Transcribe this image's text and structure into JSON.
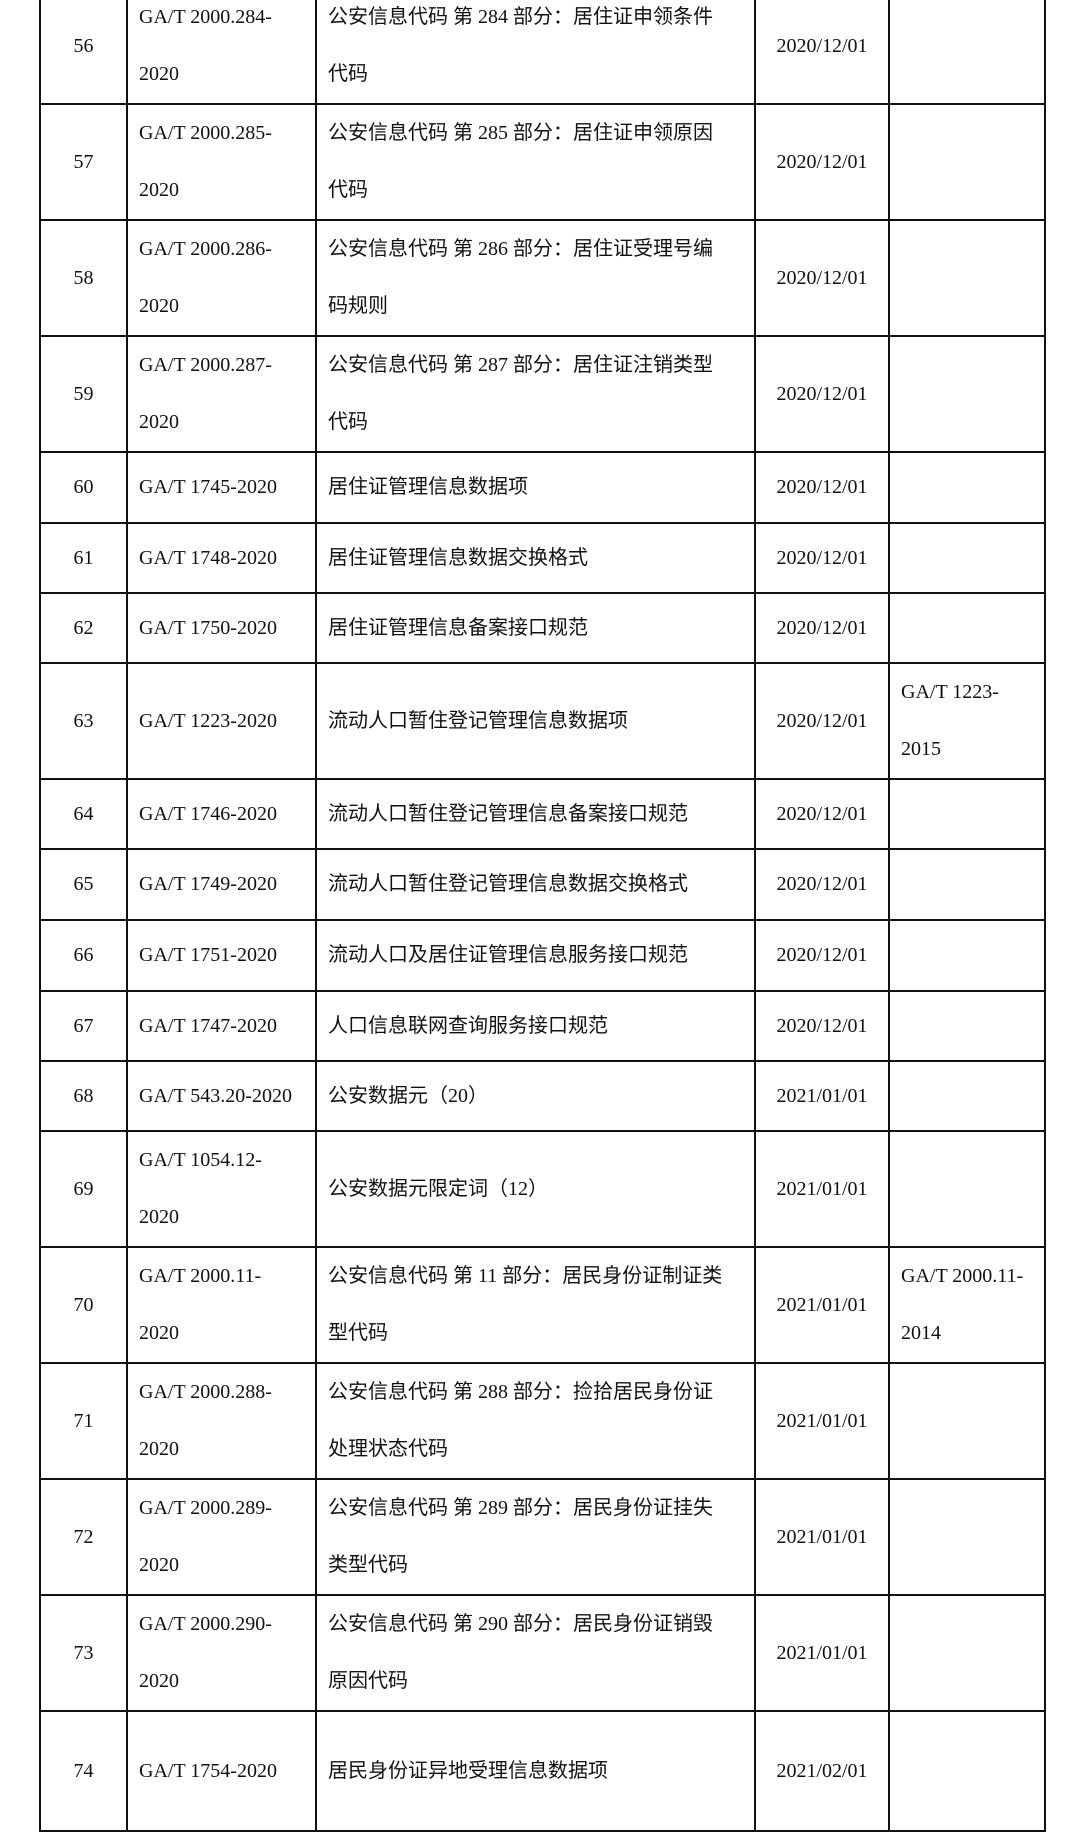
{
  "rows": [
    {
      "no": "56",
      "standard": [
        "GA/T 2000.284-",
        "2020"
      ],
      "title": [
        "公安信息代码 第 284 部分：居住证申领条件",
        "代码"
      ],
      "date": "2020/12/01",
      "replaced": []
    },
    {
      "no": "57",
      "standard": [
        "GA/T 2000.285-",
        "2020"
      ],
      "title": [
        "公安信息代码 第 285 部分：居住证申领原因",
        "代码"
      ],
      "date": "2020/12/01",
      "replaced": []
    },
    {
      "no": "58",
      "standard": [
        "GA/T 2000.286-",
        "2020"
      ],
      "title": [
        "公安信息代码 第 286 部分：居住证受理号编",
        "码规则"
      ],
      "date": "2020/12/01",
      "replaced": []
    },
    {
      "no": "59",
      "standard": [
        "GA/T 2000.287-",
        "2020"
      ],
      "title": [
        "公安信息代码 第 287 部分：居住证注销类型",
        "代码"
      ],
      "date": "2020/12/01",
      "replaced": []
    },
    {
      "no": "60",
      "standard": [
        "GA/T 1745-2020"
      ],
      "title": [
        "居住证管理信息数据项"
      ],
      "date": "2020/12/01",
      "replaced": []
    },
    {
      "no": "61",
      "standard": [
        "GA/T 1748-2020"
      ],
      "title": [
        "居住证管理信息数据交换格式"
      ],
      "date": "2020/12/01",
      "replaced": []
    },
    {
      "no": "62",
      "standard": [
        "GA/T 1750-2020"
      ],
      "title": [
        "居住证管理信息备案接口规范"
      ],
      "date": "2020/12/01",
      "replaced": []
    },
    {
      "no": "63",
      "standard": [
        "GA/T 1223-2020"
      ],
      "title": [
        "流动人口暂住登记管理信息数据项"
      ],
      "date": "2020/12/01",
      "replaced": [
        "GA/T 1223-",
        "2015"
      ]
    },
    {
      "no": "64",
      "standard": [
        "GA/T 1746-2020"
      ],
      "title": [
        "流动人口暂住登记管理信息备案接口规范"
      ],
      "date": "2020/12/01",
      "replaced": []
    },
    {
      "no": "65",
      "standard": [
        "GA/T 1749-2020"
      ],
      "title": [
        "流动人口暂住登记管理信息数据交换格式"
      ],
      "date": "2020/12/01",
      "replaced": []
    },
    {
      "no": "66",
      "standard": [
        "GA/T 1751-2020"
      ],
      "title": [
        "流动人口及居住证管理信息服务接口规范"
      ],
      "date": "2020/12/01",
      "replaced": []
    },
    {
      "no": "67",
      "standard": [
        "GA/T 1747-2020"
      ],
      "title": [
        "人口信息联网查询服务接口规范"
      ],
      "date": "2020/12/01",
      "replaced": []
    },
    {
      "no": "68",
      "standard": [
        "GA/T 543.20-2020"
      ],
      "title": [
        "公安数据元（20）"
      ],
      "date": "2021/01/01",
      "replaced": []
    },
    {
      "no": "69",
      "standard": [
        "GA/T 1054.12-",
        "2020"
      ],
      "title": [
        "公安数据元限定词（12）"
      ],
      "date": "2021/01/01",
      "replaced": []
    },
    {
      "no": "70",
      "standard": [
        "GA/T 2000.11-",
        "2020"
      ],
      "title": [
        "公安信息代码 第 11 部分：居民身份证制证类",
        "型代码"
      ],
      "date": "2021/01/01",
      "replaced": [
        "GA/T 2000.11-",
        "2014"
      ]
    },
    {
      "no": "71",
      "standard": [
        "GA/T 2000.288-",
        "2020"
      ],
      "title": [
        "公安信息代码 第 288 部分：捡拾居民身份证",
        "处理状态代码"
      ],
      "date": "2021/01/01",
      "replaced": []
    },
    {
      "no": "72",
      "standard": [
        "GA/T 2000.289-",
        "2020"
      ],
      "title": [
        "公安信息代码 第 289 部分：居民身份证挂失",
        "类型代码"
      ],
      "date": "2021/01/01",
      "replaced": []
    },
    {
      "no": "73",
      "standard": [
        "GA/T 2000.290-",
        "2020"
      ],
      "title": [
        "公安信息代码 第 290 部分：居民身份证销毁",
        "原因代码"
      ],
      "date": "2021/01/01",
      "replaced": []
    },
    {
      "no": "74",
      "standard": [
        "GA/T 1754-2020"
      ],
      "title": [
        "居民身份证异地受理信息数据项"
      ],
      "date": "2021/02/01",
      "replaced": []
    }
  ]
}
